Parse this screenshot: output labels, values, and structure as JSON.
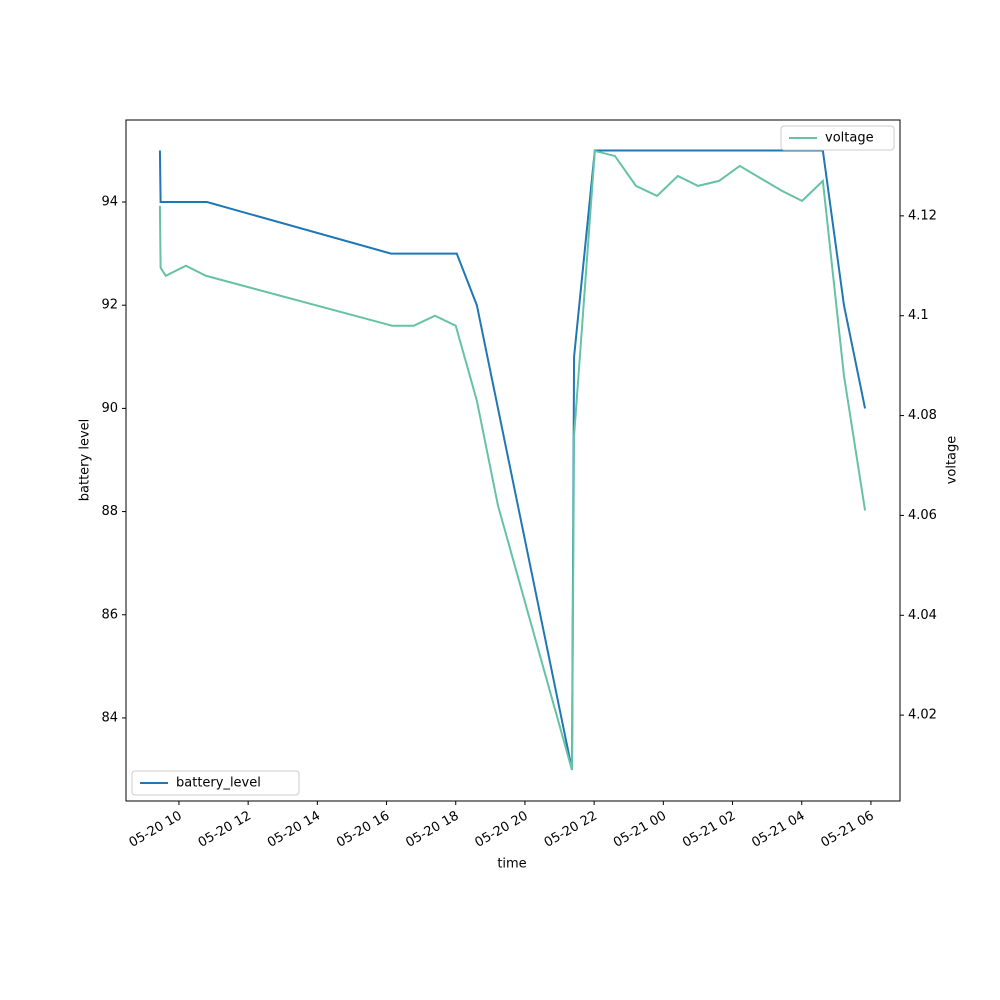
{
  "chart_data": {
    "type": "line",
    "xlabel": "time",
    "ylabel": "battery level",
    "y2label": "voltage",
    "xlim": [
      8.47,
      30.84
    ],
    "xticks": [
      {
        "value": 10,
        "label": "05-20 10"
      },
      {
        "value": 12,
        "label": "05-20 12"
      },
      {
        "value": 14,
        "label": "05-20 14"
      },
      {
        "value": 16,
        "label": "05-20 16"
      },
      {
        "value": 18,
        "label": "05-20 18"
      },
      {
        "value": 20,
        "label": "05-20 20"
      },
      {
        "value": 22,
        "label": "05-20 22"
      },
      {
        "value": 24,
        "label": "05-21 00"
      },
      {
        "value": 26,
        "label": "05-21 02"
      },
      {
        "value": 28,
        "label": "05-21 04"
      },
      {
        "value": 30,
        "label": "05-21 06"
      }
    ],
    "ylim": [
      82.39,
      95.59
    ],
    "yticks": [
      84,
      86,
      88,
      90,
      92,
      94
    ],
    "y2lim": [
      4.0028,
      4.1392
    ],
    "y2ticks": [
      4.02,
      4.04,
      4.06,
      4.08,
      4.1,
      4.12
    ],
    "series": [
      {
        "name": "battery_level",
        "color": "#1f77b4",
        "legend": "lower left",
        "x": [
          9.45,
          9.47,
          10.81,
          16.13,
          18.03,
          18.61,
          21.36,
          21.42,
          22.02,
          28.61,
          29.22,
          29.83
        ],
        "values": [
          95,
          94,
          94,
          93,
          93,
          92,
          83,
          91,
          95,
          95,
          92,
          90
        ]
      },
      {
        "name": "voltage",
        "color": "#66c2a5",
        "axis": "y2",
        "legend": "upper right",
        "x": [
          9.45,
          9.47,
          9.62,
          10.2,
          10.78,
          16.16,
          16.79,
          17.4,
          18.0,
          18.61,
          19.22,
          21.36,
          21.42,
          21.59,
          22.02,
          22.6,
          23.21,
          23.82,
          24.42,
          25.0,
          25.61,
          26.21,
          27.43,
          28.01,
          28.61,
          29.22,
          29.83
        ],
        "values": [
          4.122,
          4.1096,
          4.108,
          4.11,
          4.108,
          4.098,
          4.098,
          4.1,
          4.098,
          4.083,
          4.062,
          4.009,
          4.076,
          4.092,
          4.133,
          4.132,
          4.126,
          4.124,
          4.128,
          4.126,
          4.127,
          4.13,
          4.125,
          4.123,
          4.127,
          4.088,
          4.061
        ]
      }
    ]
  }
}
